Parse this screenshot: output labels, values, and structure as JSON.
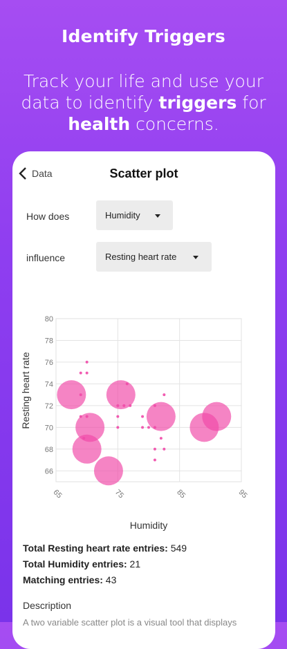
{
  "hero": {
    "title": "Identify Triggers",
    "sub_1": "Track your life and use your data to identify ",
    "sub_bold_1": "triggers",
    "sub_2": " for ",
    "sub_bold_2": "health",
    "sub_3": " concerns."
  },
  "screen": {
    "back_label": "Data",
    "title": "Scatter plot"
  },
  "controls": {
    "how_label": "How does",
    "x_select": "Humidity",
    "influence_label": "influence",
    "y_select": "Resting heart rate"
  },
  "chart_data": {
    "type": "scatter",
    "xlabel": "Humidity",
    "ylabel": "Resting heart rate",
    "xlim": [
      65,
      95
    ],
    "ylim": [
      65,
      80
    ],
    "xticks": [
      "65",
      "75",
      "85",
      "95"
    ],
    "yticks": [
      "66",
      "68",
      "70",
      "72",
      "74",
      "76",
      "78",
      "80"
    ],
    "grid": true,
    "color": "#f04aa8",
    "points": [
      {
        "x": 67.5,
        "y": 73,
        "size": "large"
      },
      {
        "x": 70.5,
        "y": 70,
        "size": "large"
      },
      {
        "x": 70.0,
        "y": 68,
        "size": "large"
      },
      {
        "x": 73.5,
        "y": 66,
        "size": "large"
      },
      {
        "x": 75.5,
        "y": 73,
        "size": "large"
      },
      {
        "x": 82.0,
        "y": 71,
        "size": "large"
      },
      {
        "x": 89.0,
        "y": 70,
        "size": "large"
      },
      {
        "x": 91.0,
        "y": 71,
        "size": "large"
      },
      {
        "x": 70.0,
        "y": 76,
        "size": "small"
      },
      {
        "x": 69.0,
        "y": 75,
        "size": "small"
      },
      {
        "x": 70.0,
        "y": 75,
        "size": "small"
      },
      {
        "x": 69.0,
        "y": 73,
        "size": "small"
      },
      {
        "x": 69.0,
        "y": 71,
        "size": "small"
      },
      {
        "x": 70.0,
        "y": 71,
        "size": "small"
      },
      {
        "x": 69.5,
        "y": 69,
        "size": "small"
      },
      {
        "x": 75.0,
        "y": 72,
        "size": "small"
      },
      {
        "x": 76.0,
        "y": 72,
        "size": "small"
      },
      {
        "x": 75.0,
        "y": 71,
        "size": "small"
      },
      {
        "x": 75.0,
        "y": 70,
        "size": "small"
      },
      {
        "x": 76.5,
        "y": 74,
        "size": "small"
      },
      {
        "x": 77.0,
        "y": 72,
        "size": "small"
      },
      {
        "x": 79.0,
        "y": 71,
        "size": "small"
      },
      {
        "x": 79.0,
        "y": 70,
        "size": "small"
      },
      {
        "x": 80.0,
        "y": 70,
        "size": "small"
      },
      {
        "x": 81.0,
        "y": 72,
        "size": "small"
      },
      {
        "x": 81.0,
        "y": 70,
        "size": "small"
      },
      {
        "x": 82.5,
        "y": 73,
        "size": "small"
      },
      {
        "x": 81.0,
        "y": 68,
        "size": "small"
      },
      {
        "x": 82.0,
        "y": 69,
        "size": "small"
      },
      {
        "x": 82.5,
        "y": 68,
        "size": "small"
      },
      {
        "x": 81.0,
        "y": 67,
        "size": "small"
      }
    ]
  },
  "stats": {
    "total_y_label": "Total Resting heart rate entries:",
    "total_y_value": "549",
    "total_x_label": "Total Humidity entries:",
    "total_x_value": "21",
    "matching_label": "Matching entries:",
    "matching_value": "43"
  },
  "description": {
    "heading": "Description",
    "text": "A two variable scatter plot is a visual tool that displays"
  }
}
